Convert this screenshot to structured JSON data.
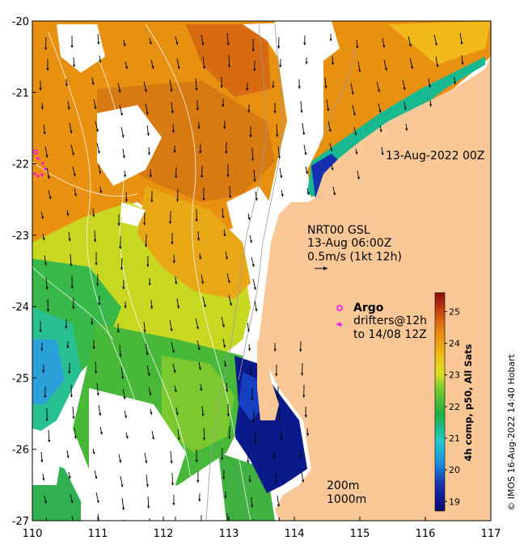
{
  "map": {
    "date_label": "13-Aug-2022 00Z",
    "info_lines": [
      "NRT00 GSL",
      "13-Aug 06:00Z",
      "0.5m/s (1kt 12h)"
    ],
    "legend": {
      "argo_label": "Argo",
      "drifters_line1": "drifters@12h",
      "drifters_line2": "to 14/08 12Z",
      "argo_color": "#ff00ff"
    },
    "contours": [
      "200m",
      "1000m"
    ],
    "credit": "© IMOS 16-Aug-2022 14:40 Hobart",
    "colorbar_title": "4h comp, p50, All Sats",
    "colorbar_ticks": [
      19,
      20,
      21,
      22,
      23,
      24,
      25
    ],
    "x_ticks": [
      110,
      111,
      112,
      113,
      114,
      115,
      116,
      117
    ],
    "y_ticks": [
      -20,
      -21,
      -22,
      -23,
      -24,
      -25,
      -26,
      -27
    ],
    "lon_range": [
      110,
      117
    ],
    "lat_range": [
      -27,
      -20
    ],
    "sst_range": [
      18.7,
      25.6
    ],
    "colors": {
      "land": "#f9c896",
      "cloud": "#ffffff"
    }
  }
}
